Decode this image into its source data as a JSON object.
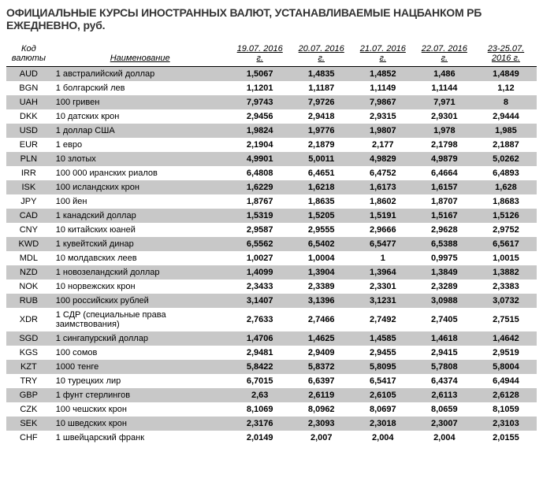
{
  "title": "ОФИЦИАЛЬНЫЕ КУРСЫ ИНОСТРАННЫХ ВАЛЮТ, УСТАНАВЛИВАЕМЫЕ НАЦБАНКОМ РБ ЕЖЕДНЕВНО, руб.",
  "headers": {
    "code": "Код валюты",
    "name": "Наименование",
    "dates": [
      "19.07. 2016 г.",
      "20.07. 2016 г.",
      "21.07. 2016 г.",
      "22.07. 2016 г.",
      "23-25.07. 2016 г."
    ]
  },
  "styling": {
    "odd_row_bg": "#c8c8c8",
    "even_row_bg": "#ffffff",
    "title_color": "#333333",
    "title_fontsize": 14,
    "body_fontsize": 11,
    "value_fontweight": "bold"
  },
  "rows": [
    {
      "code": "AUD",
      "name": "1 австралийский доллар",
      "vals": [
        "1,5067",
        "1,4835",
        "1,4852",
        "1,486",
        "1,4849"
      ]
    },
    {
      "code": "BGN",
      "name": "1 болгарский лев",
      "vals": [
        "1,1201",
        "1,1187",
        "1,1149",
        "1,1144",
        "1,12"
      ]
    },
    {
      "code": "UAH",
      "name": "100 гривен",
      "vals": [
        "7,9743",
        "7,9726",
        "7,9867",
        "7,971",
        "8"
      ]
    },
    {
      "code": "DKK",
      "name": "10 датских крон",
      "vals": [
        "2,9456",
        "2,9418",
        "2,9315",
        "2,9301",
        "2,9444"
      ]
    },
    {
      "code": "USD",
      "name": "1 доллар США",
      "vals": [
        "1,9824",
        "1,9776",
        "1,9807",
        "1,978",
        "1,985"
      ]
    },
    {
      "code": "EUR",
      "name": "1 евро",
      "vals": [
        "2,1904",
        "2,1879",
        "2,177",
        "2,1798",
        "2,1887"
      ]
    },
    {
      "code": "PLN",
      "name": "10 злотых",
      "vals": [
        "4,9901",
        "5,0011",
        "4,9829",
        "4,9879",
        "5,0262"
      ]
    },
    {
      "code": "IRR",
      "name": "100 000 иранских риалов",
      "vals": [
        "6,4808",
        "6,4651",
        "6,4752",
        "6,4664",
        "6,4893"
      ]
    },
    {
      "code": "ISK",
      "name": "100 исландских крон",
      "vals": [
        "1,6229",
        "1,6218",
        "1,6173",
        "1,6157",
        "1,628"
      ]
    },
    {
      "code": "JPY",
      "name": "100 йен",
      "vals": [
        "1,8767",
        "1,8635",
        "1,8602",
        "1,8707",
        "1,8683"
      ]
    },
    {
      "code": "CAD",
      "name": "1 канадский доллар",
      "vals": [
        "1,5319",
        "1,5205",
        "1,5191",
        "1,5167",
        "1,5126"
      ]
    },
    {
      "code": "CNY",
      "name": "10 китайских юаней",
      "vals": [
        "2,9587",
        "2,9555",
        "2,9666",
        "2,9628",
        "2,9752"
      ]
    },
    {
      "code": "KWD",
      "name": "1 кувейтский динар",
      "vals": [
        "6,5562",
        "6,5402",
        "6,5477",
        "6,5388",
        "6,5617"
      ]
    },
    {
      "code": "MDL",
      "name": "10 молдавских леев",
      "vals": [
        "1,0027",
        "1,0004",
        "1",
        "0,9975",
        "1,0015"
      ]
    },
    {
      "code": "NZD",
      "name": "1 новозеландский доллар",
      "vals": [
        "1,4099",
        "1,3904",
        "1,3964",
        "1,3849",
        "1,3882"
      ]
    },
    {
      "code": "NOK",
      "name": "10 норвежских крон",
      "vals": [
        "2,3433",
        "2,3389",
        "2,3301",
        "2,3289",
        "2,3383"
      ]
    },
    {
      "code": "RUB",
      "name": "100 российских рублей",
      "vals": [
        "3,1407",
        "3,1396",
        "3,1231",
        "3,0988",
        "3,0732"
      ]
    },
    {
      "code": "XDR",
      "name": "1 СДР (специальные права заимствования)",
      "vals": [
        "2,7633",
        "2,7466",
        "2,7492",
        "2,7405",
        "2,7515"
      ]
    },
    {
      "code": "SGD",
      "name": "1 сингапурский доллар",
      "vals": [
        "1,4706",
        "1,4625",
        "1,4585",
        "1,4618",
        "1,4642"
      ]
    },
    {
      "code": "KGS",
      "name": "100 сомов",
      "vals": [
        "2,9481",
        "2,9409",
        "2,9455",
        "2,9415",
        "2,9519"
      ]
    },
    {
      "code": "KZT",
      "name": "1000 тенге",
      "vals": [
        "5,8422",
        "5,8372",
        "5,8095",
        "5,7808",
        "5,8004"
      ]
    },
    {
      "code": "TRY",
      "name": "10 турецких лир",
      "vals": [
        "6,7015",
        "6,6397",
        "6,5417",
        "6,4374",
        "6,4944"
      ]
    },
    {
      "code": "GBP",
      "name": "1 фунт стерлингов",
      "vals": [
        "2,63",
        "2,6119",
        "2,6105",
        "2,6113",
        "2,6128"
      ]
    },
    {
      "code": "CZK",
      "name": "100 чешских крон",
      "vals": [
        "8,1069",
        "8,0962",
        "8,0697",
        "8,0659",
        "8,1059"
      ]
    },
    {
      "code": "SEK",
      "name": "10 шведских крон",
      "vals": [
        "2,3176",
        "2,3093",
        "2,3018",
        "2,3007",
        "2,3103"
      ]
    },
    {
      "code": "CHF",
      "name": "1 швейцарский франк",
      "vals": [
        "2,0149",
        "2,007",
        "2,004",
        "2,004",
        "2,0155"
      ]
    }
  ]
}
